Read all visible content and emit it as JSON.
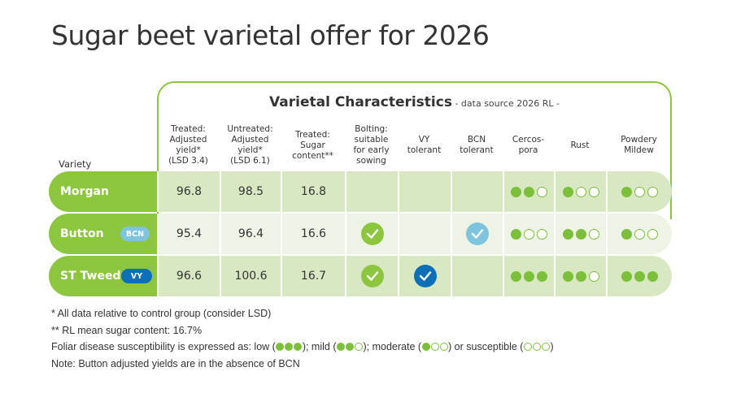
{
  "title": "Sugar beet varietal offer for 2026",
  "panel": {
    "heading": "Varietal Characteristics",
    "subheading": " - data source 2026 RL -"
  },
  "colors": {
    "brand_green": "#8cc63f",
    "dot_green": "#7cbf3a",
    "row_dark": "#d8e8c3",
    "row_light": "#edf3e5",
    "bcn_blue": "#7fc4dd",
    "vy_blue": "#0c6fb8"
  },
  "columns": {
    "variety": "Variety",
    "treated_yield": [
      "Treated:",
      "Adjusted",
      "yield*",
      "(LSD 3.4)"
    ],
    "untreated_yield": [
      "Untreated:",
      "Adjusted",
      "yield*",
      "(LSD 6.1)"
    ],
    "sugar": [
      "Treated:",
      "Sugar",
      "content**"
    ],
    "bolting": [
      "Bolting:",
      "suitable",
      "for early",
      "sowing"
    ],
    "vy": [
      "VY",
      "tolerant"
    ],
    "bcn": [
      "BCN",
      "tolerant"
    ],
    "cercospora": [
      "Cercos-",
      "pora"
    ],
    "rust": [
      "Rust"
    ],
    "powdery": [
      "Powdery",
      "Mildew"
    ]
  },
  "rows": [
    {
      "name": "Morgan",
      "tag": null,
      "treated_yield": "96.8",
      "untreated_yield": "98.5",
      "sugar": "16.8",
      "bolting": false,
      "vy": false,
      "bcn": false,
      "cercospora": 2,
      "rust": 1,
      "powdery": 1
    },
    {
      "name": "Button",
      "tag": "BCN",
      "treated_yield": "95.4",
      "untreated_yield": "96.4",
      "sugar": "16.6",
      "bolting": true,
      "vy": false,
      "bcn": true,
      "cercospora": 1,
      "rust": 2,
      "powdery": 1
    },
    {
      "name": "ST Tweed",
      "tag": "VY",
      "treated_yield": "96.6",
      "untreated_yield": "100.6",
      "sugar": "16.7",
      "bolting": true,
      "vy": true,
      "bcn": false,
      "cercospora": 3,
      "rust": 2,
      "powdery": 3
    }
  ],
  "footnotes": {
    "line1": "* All data relative to control group (consider LSD)",
    "line2": "** RL mean sugar content: 16.7%",
    "line3_prefix": "Foliar disease susceptibility is expressed as: ",
    "legend": [
      {
        "label": "low",
        "filled": 3,
        "sep": "; "
      },
      {
        "label": "mild",
        "filled": 2,
        "sep": "; "
      },
      {
        "label": "moderate",
        "filled": 1,
        "sep": " or "
      },
      {
        "label": "susceptible",
        "filled": 0,
        "sep": ""
      }
    ],
    "line4": "Note: Button adjusted yields are in the absence of BCN"
  }
}
